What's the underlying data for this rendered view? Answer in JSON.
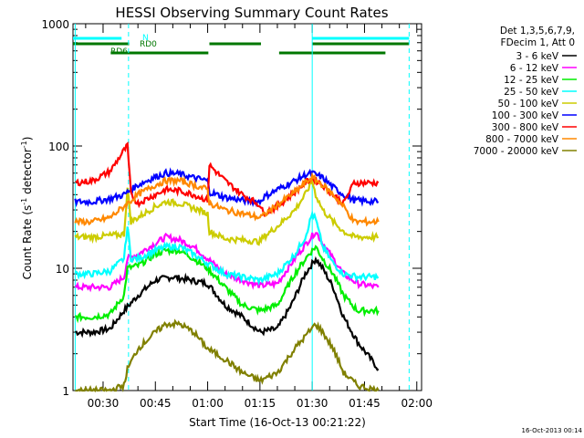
{
  "chart_data": {
    "type": "line",
    "title": "HESSI Observing Summary Count Rates",
    "xlabel": "Start Time (16-Oct-13 00:21:22)",
    "ylabel_main": "Count Rate (s",
    "ylabel_sup1": "-1",
    "ylabel_mid": " detector",
    "ylabel_sup2": "-1",
    "ylabel_end": ")",
    "yscale": "log",
    "ylim": [
      1,
      1000
    ],
    "xlim_minutes": [
      21.37,
      121.37
    ],
    "x_ticks": [
      "00:30",
      "00:45",
      "01:00",
      "01:15",
      "01:30",
      "01:45",
      "02:00"
    ],
    "y_ticks": [
      "1",
      "10",
      "100",
      "1000"
    ],
    "grid": false,
    "legend_header": [
      "Det 1,3,5,6,7,9,",
      "FDecim 1, Att 0"
    ],
    "legend_placement": "right",
    "series": [
      {
        "name": "3 - 6 keV",
        "color": "#000000",
        "points": [
          [
            22,
            3
          ],
          [
            27,
            3
          ],
          [
            32,
            3.2
          ],
          [
            36,
            4.5
          ],
          [
            40,
            6
          ],
          [
            45,
            8
          ],
          [
            50,
            8.5
          ],
          [
            55,
            8
          ],
          [
            60,
            7.5
          ],
          [
            65,
            5
          ],
          [
            70,
            4
          ],
          [
            75,
            3
          ],
          [
            80,
            3.2
          ],
          [
            84,
            5
          ],
          [
            88,
            9
          ],
          [
            91,
            12
          ],
          [
            93,
            10
          ],
          [
            96,
            7
          ],
          [
            99,
            4
          ],
          [
            103,
            2.5
          ],
          [
            109,
            1.5
          ]
        ]
      },
      {
        "name": "6 - 12 keV",
        "color": "#ff00ff",
        "points": [
          [
            22,
            7
          ],
          [
            27,
            7
          ],
          [
            32,
            7
          ],
          [
            36,
            8.5
          ],
          [
            37,
            12
          ],
          [
            40,
            13
          ],
          [
            45,
            16
          ],
          [
            48,
            18
          ],
          [
            52,
            17
          ],
          [
            56,
            15
          ],
          [
            60,
            12
          ],
          [
            65,
            9
          ],
          [
            70,
            8
          ],
          [
            75,
            7.2
          ],
          [
            80,
            7.5
          ],
          [
            85,
            12
          ],
          [
            89,
            17
          ],
          [
            91,
            20
          ],
          [
            93,
            16
          ],
          [
            96,
            12
          ],
          [
            99,
            9
          ],
          [
            103,
            7.5
          ],
          [
            109,
            7
          ]
        ]
      },
      {
        "name": "12 - 25 keV",
        "color": "#00ee00",
        "points": [
          [
            22,
            4
          ],
          [
            27,
            4
          ],
          [
            32,
            4.2
          ],
          [
            36,
            6
          ],
          [
            37,
            10
          ],
          [
            40,
            10.5
          ],
          [
            45,
            13
          ],
          [
            48,
            14
          ],
          [
            52,
            14
          ],
          [
            56,
            12
          ],
          [
            60,
            10
          ],
          [
            65,
            7
          ],
          [
            70,
            5
          ],
          [
            75,
            4.5
          ],
          [
            80,
            5
          ],
          [
            85,
            9
          ],
          [
            89,
            13
          ],
          [
            91,
            15
          ],
          [
            93,
            12
          ],
          [
            96,
            9
          ],
          [
            99,
            6
          ],
          [
            103,
            4.5
          ],
          [
            109,
            4.5
          ]
        ]
      },
      {
        "name": "25 - 50 keV",
        "color": "#00ffff",
        "points": [
          [
            22,
            9
          ],
          [
            27,
            9
          ],
          [
            32,
            9.5
          ],
          [
            36,
            12
          ],
          [
            37,
            22
          ],
          [
            38,
            12
          ],
          [
            40,
            12
          ],
          [
            45,
            14
          ],
          [
            48,
            15
          ],
          [
            52,
            15
          ],
          [
            56,
            13
          ],
          [
            60,
            11
          ],
          [
            65,
            9
          ],
          [
            70,
            8.5
          ],
          [
            75,
            8
          ],
          [
            80,
            9
          ],
          [
            85,
            13
          ],
          [
            88,
            18
          ],
          [
            90,
            28
          ],
          [
            91,
            25
          ],
          [
            93,
            15
          ],
          [
            96,
            11
          ],
          [
            99,
            9
          ],
          [
            103,
            8.5
          ],
          [
            109,
            8.5
          ]
        ]
      },
      {
        "name": "50 - 100 keV",
        "color": "#cccc00",
        "points": [
          [
            22,
            18
          ],
          [
            27,
            18
          ],
          [
            32,
            18.5
          ],
          [
            36,
            19
          ],
          [
            37,
            45
          ],
          [
            38,
            24
          ],
          [
            40,
            26
          ],
          [
            45,
            32
          ],
          [
            48,
            35
          ],
          [
            52,
            34
          ],
          [
            56,
            31
          ],
          [
            60,
            28
          ],
          [
            60.5,
            20
          ],
          [
            65,
            17.5
          ],
          [
            70,
            17
          ],
          [
            75,
            16.5
          ],
          [
            76,
            18
          ],
          [
            80,
            22
          ],
          [
            85,
            30
          ],
          [
            88,
            40
          ],
          [
            90,
            52
          ],
          [
            91,
            40
          ],
          [
            93,
            30
          ],
          [
            96,
            24
          ],
          [
            99,
            20
          ],
          [
            102,
            18
          ],
          [
            109,
            18
          ]
        ]
      },
      {
        "name": "100 - 300 keV",
        "color": "#0000ff",
        "points": [
          [
            22,
            35
          ],
          [
            27,
            35
          ],
          [
            32,
            37
          ],
          [
            36,
            40
          ],
          [
            40,
            48
          ],
          [
            45,
            56
          ],
          [
            48,
            60
          ],
          [
            52,
            59
          ],
          [
            56,
            55
          ],
          [
            60,
            52
          ],
          [
            60.5,
            42
          ],
          [
            65,
            38
          ],
          [
            70,
            36
          ],
          [
            75,
            35
          ],
          [
            76,
            38
          ],
          [
            80,
            44
          ],
          [
            85,
            52
          ],
          [
            88,
            58
          ],
          [
            90,
            60
          ],
          [
            93,
            55
          ],
          [
            96,
            46
          ],
          [
            99,
            40
          ],
          [
            102,
            36
          ],
          [
            109,
            35
          ]
        ]
      },
      {
        "name": "300 - 800 keV",
        "color": "#ff0000",
        "points": [
          [
            22,
            50
          ],
          [
            27,
            52
          ],
          [
            32,
            62
          ],
          [
            36,
            92
          ],
          [
            37,
            100
          ],
          [
            38,
            40
          ],
          [
            40,
            34
          ],
          [
            45,
            40
          ],
          [
            48,
            44
          ],
          [
            52,
            43
          ],
          [
            56,
            40
          ],
          [
            60,
            36
          ],
          [
            60.5,
            70
          ],
          [
            65,
            52
          ],
          [
            70,
            40
          ],
          [
            75,
            33
          ],
          [
            76,
            28
          ],
          [
            80,
            32
          ],
          [
            85,
            42
          ],
          [
            88,
            50
          ],
          [
            90,
            55
          ],
          [
            93,
            48
          ],
          [
            96,
            40
          ],
          [
            99,
            34
          ],
          [
            102,
            50
          ],
          [
            109,
            50
          ]
        ]
      },
      {
        "name": "800 - 7000 keV",
        "color": "#ff8800",
        "points": [
          [
            22,
            24
          ],
          [
            27,
            24
          ],
          [
            32,
            26
          ],
          [
            36,
            32
          ],
          [
            40,
            40
          ],
          [
            45,
            48
          ],
          [
            48,
            52
          ],
          [
            52,
            52
          ],
          [
            56,
            48
          ],
          [
            60,
            44
          ],
          [
            60.5,
            34
          ],
          [
            65,
            30
          ],
          [
            70,
            28
          ],
          [
            75,
            26
          ],
          [
            76,
            27
          ],
          [
            80,
            33
          ],
          [
            85,
            42
          ],
          [
            88,
            50
          ],
          [
            90,
            55
          ],
          [
            93,
            48
          ],
          [
            96,
            40
          ],
          [
            99,
            32
          ],
          [
            102,
            24
          ],
          [
            109,
            24
          ]
        ]
      },
      {
        "name": "7000 - 20000 keV",
        "color": "#808000",
        "points": [
          [
            22,
            1
          ],
          [
            32,
            1
          ],
          [
            36,
            1.1
          ],
          [
            37,
            1.5
          ],
          [
            40,
            2.2
          ],
          [
            45,
            3
          ],
          [
            48,
            3.5
          ],
          [
            52,
            3.5
          ],
          [
            56,
            3
          ],
          [
            60,
            2.2
          ],
          [
            65,
            1.8
          ],
          [
            70,
            1.4
          ],
          [
            75,
            1.2
          ],
          [
            80,
            1.4
          ],
          [
            85,
            2.2
          ],
          [
            89,
            3
          ],
          [
            91,
            3.5
          ],
          [
            93,
            3
          ],
          [
            96,
            2.2
          ],
          [
            99,
            1.4
          ],
          [
            103,
            1.1
          ],
          [
            109,
            1
          ]
        ]
      }
    ],
    "vlines_minutes": [
      {
        "x": 22.0,
        "style": "solid",
        "color": "#00ffff"
      },
      {
        "x": 37.3,
        "style": "dashed",
        "color": "#00ffff"
      },
      {
        "x": 90.0,
        "style": "solid",
        "color": "#00ffff"
      },
      {
        "x": 117.8,
        "style": "dashed",
        "color": "#00ffff"
      }
    ],
    "flag_bars": [
      {
        "label": "N",
        "color": "#00ffff",
        "segments": [
          [
            21.37,
            35.3
          ],
          [
            90.0,
            117.8
          ]
        ],
        "row": 0
      },
      {
        "label": "RD0",
        "color": "#007700",
        "segments": [
          [
            21.37,
            37.5
          ],
          [
            60.5,
            75.3
          ],
          [
            75.3,
            75.3
          ],
          [
            90.0,
            117.8
          ]
        ],
        "row": 1
      },
      {
        "label": "RD6",
        "color": "#007700",
        "segments": [
          [
            32.2,
            38.0
          ],
          [
            37.5,
            60.2
          ],
          [
            80.5,
            111.0
          ]
        ],
        "row": 2
      }
    ],
    "timestamp": "16-Oct-2013 00:14"
  }
}
